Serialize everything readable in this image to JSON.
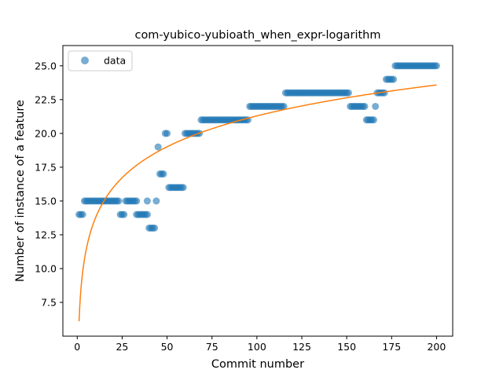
{
  "chart_data": {
    "type": "scatter",
    "title": "com-yubico-yubioath_when_expr-logarithm",
    "xlabel": "Commit number",
    "ylabel": "Number of instance of a feature",
    "xlim": [
      -8,
      209
    ],
    "ylim": [
      5.0,
      26.5
    ],
    "xticks": [
      0,
      25,
      50,
      75,
      100,
      125,
      150,
      175,
      200
    ],
    "yticks": [
      7.5,
      10.0,
      12.5,
      15.0,
      17.5,
      20.0,
      22.5,
      25.0
    ],
    "ytick_labels": [
      "7.5",
      "10.0",
      "12.5",
      "15.0",
      "17.5",
      "20.0",
      "22.5",
      "25.0"
    ],
    "legend": {
      "placement": "upper-left",
      "entries": [
        "data"
      ]
    },
    "grid": false,
    "colors": {
      "points": "#1f77b4",
      "fit": "#ff7f0e"
    },
    "series": [
      {
        "name": "data",
        "kind": "points",
        "segments": [
          {
            "from": 1,
            "to": 3,
            "y": 14
          },
          {
            "from": 4,
            "to": 23,
            "y": 15
          },
          {
            "from": 24,
            "to": 26,
            "y": 14
          },
          {
            "from": 27,
            "to": 32,
            "y": 15
          },
          {
            "from": 33,
            "to": 39,
            "y": 14
          },
          {
            "from": 40,
            "to": 43,
            "y": 13
          },
          {
            "from": 46,
            "to": 48,
            "y": 17
          },
          {
            "from": 49,
            "to": 50,
            "y": 20
          },
          {
            "from": 51,
            "to": 59,
            "y": 16
          },
          {
            "from": 60,
            "to": 68,
            "y": 20
          },
          {
            "from": 69,
            "to": 95,
            "y": 21
          },
          {
            "from": 96,
            "to": 115,
            "y": 22
          },
          {
            "from": 116,
            "to": 151,
            "y": 23
          },
          {
            "from": 152,
            "to": 160,
            "y": 22
          },
          {
            "from": 161,
            "to": 165,
            "y": 21
          },
          {
            "from": 167,
            "to": 171,
            "y": 23
          },
          {
            "from": 172,
            "to": 176,
            "y": 24
          },
          {
            "from": 177,
            "to": 200,
            "y": 25
          }
        ],
        "extra_points": [
          {
            "x": 33,
            "y": 15
          },
          {
            "x": 39,
            "y": 15
          },
          {
            "x": 44,
            "y": 15
          },
          {
            "x": 45,
            "y": 19
          },
          {
            "x": 166,
            "y": 22
          }
        ]
      },
      {
        "kind": "fit-curve",
        "model": "y = a + b*ln(x)",
        "a": 6.1,
        "b": 3.3,
        "x_range": [
          1,
          200
        ]
      }
    ]
  }
}
